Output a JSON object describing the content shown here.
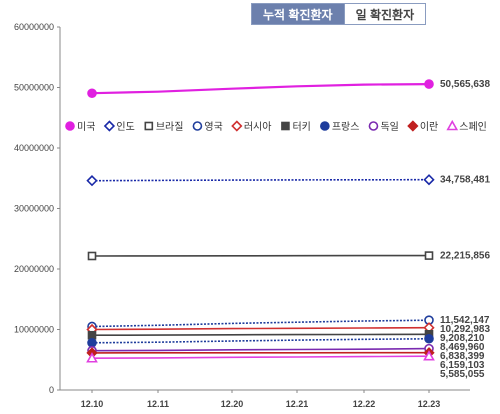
{
  "tabs": [
    {
      "label": "누적 확진환자",
      "active": true
    },
    {
      "label": "일 확진환자",
      "active": false
    }
  ],
  "chart_data": {
    "type": "line",
    "title": "",
    "xlabel": "",
    "ylabel": "",
    "ylim": [
      0,
      60000000
    ],
    "yticks": [
      "0",
      "10000000",
      "20000000",
      "30000000",
      "40000000",
      "50000000",
      "60000000"
    ],
    "categories": [
      "12.10",
      "12.11",
      "12.20",
      "12.21",
      "12.22",
      "12.23"
    ],
    "legend_position": "inside-top",
    "grid": false,
    "series": [
      {
        "name": "미국",
        "color": "#e020e0",
        "marker": "circle-filled",
        "values": [
          49050000,
          49300000,
          49800000,
          50200000,
          50480000,
          50565638
        ],
        "end_label": "50,565,638"
      },
      {
        "name": "인도",
        "color": "#1a2aa8",
        "marker": "diamond-open",
        "values": [
          34600000,
          34650000,
          34700000,
          34720000,
          34740000,
          34758481
        ],
        "end_label": "34,758,481"
      },
      {
        "name": "브라질",
        "color": "#444444",
        "marker": "square-open",
        "values": [
          22150000,
          22160000,
          22180000,
          22200000,
          22210000,
          22215856
        ],
        "end_label": "22,215,856"
      },
      {
        "name": "영국",
        "color": "#1f3d9c",
        "marker": "circle-open",
        "values": [
          10500000,
          10700000,
          11000000,
          11200000,
          11400000,
          11542147
        ],
        "end_label": "11,542,147"
      },
      {
        "name": "러시아",
        "color": "#d03030",
        "marker": "diamond-open",
        "values": [
          10000000,
          10050000,
          10150000,
          10200000,
          10250000,
          10292983
        ],
        "end_label": "10,292,983"
      },
      {
        "name": "터키",
        "color": "#444444",
        "marker": "square-filled",
        "values": [
          9050000,
          9080000,
          9120000,
          9150000,
          9180000,
          9208210
        ],
        "end_label": "9,208,210"
      },
      {
        "name": "프랑스",
        "color": "#1f3d9c",
        "marker": "circle-filled",
        "values": [
          7800000,
          7900000,
          8100000,
          8250000,
          8380000,
          8469960
        ],
        "end_label": "8,469,960"
      },
      {
        "name": "독일",
        "color": "#7a2ab0",
        "marker": "circle-open",
        "values": [
          6500000,
          6550000,
          6650000,
          6700000,
          6750000,
          6838399
        ],
        "end_label": "6,838,399"
      },
      {
        "name": "이란",
        "color": "#c02020",
        "marker": "diamond-filled",
        "values": [
          6140000,
          6145000,
          6150000,
          6155000,
          6158000,
          6159103
        ],
        "end_label": "6,159,103"
      },
      {
        "name": "스페인",
        "color": "#e040e0",
        "marker": "triangle-open",
        "values": [
          5250000,
          5300000,
          5400000,
          5450000,
          5520000,
          5585055
        ],
        "end_label": "5,585,055"
      }
    ]
  }
}
